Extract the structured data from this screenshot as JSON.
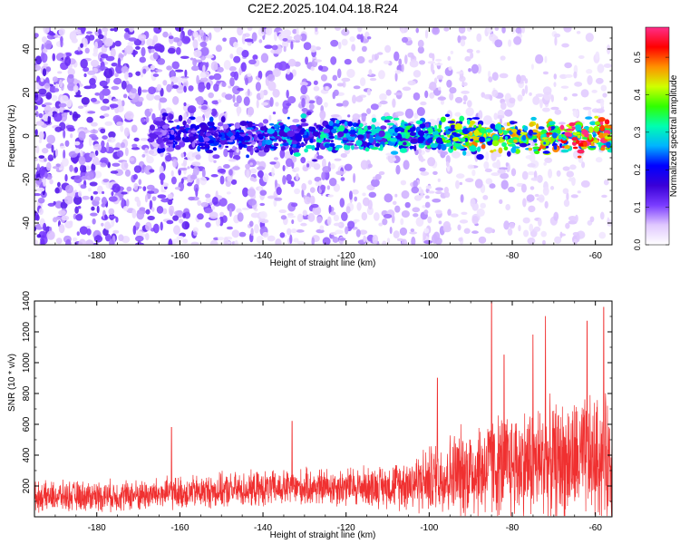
{
  "figure": {
    "title": "C2E2.2025.104.04.18.R24"
  },
  "chart_data": [
    {
      "type": "heatmap",
      "title": "C2E2.2025.104.04.18.R24",
      "xlabel": "Height of straight line (km)",
      "ylabel": "Frequency (Hz)",
      "xlim": [
        -195,
        -56
      ],
      "ylim": [
        -50,
        50
      ],
      "xticks": [
        -180,
        -160,
        -140,
        -120,
        -100,
        -80,
        -60
      ],
      "yticks": [
        -40,
        -20,
        0,
        20,
        40
      ],
      "colorbar": {
        "label": "Normalized spectral amplitude",
        "range": [
          0,
          0.58
        ],
        "ticks": [
          0,
          0.1,
          0.2,
          0.3,
          0.4,
          0.5
        ],
        "tick_labels": [
          "0.0",
          "0.1",
          "0.2",
          "0.3",
          "0.4",
          "0.5"
        ],
        "colormap": [
          "#ffffff",
          "#e0c8ff",
          "#7a3cff",
          "#3a00d8",
          "#0000ff",
          "#00b4ff",
          "#00ffb0",
          "#30ff00",
          "#d0ff00",
          "#ff9000",
          "#ff0000",
          "#ff2e8a"
        ]
      },
      "band": {
        "center_frequency": 0,
        "half_width": 6,
        "description_points": [
          {
            "x": -165,
            "y": 0,
            "value": 0.18
          },
          {
            "x": -140,
            "y": -2,
            "value": 0.22
          },
          {
            "x": -135,
            "y": 0,
            "value": 0.26
          },
          {
            "x": -100,
            "y": 1,
            "value": 0.3
          },
          {
            "x": -88,
            "y": 0,
            "value": 0.42
          },
          {
            "x": -78,
            "y": 1,
            "value": 0.4
          },
          {
            "x": -65,
            "y": 0,
            "value": 0.55
          }
        ]
      },
      "grid": false,
      "legend": "colorbar-right"
    },
    {
      "type": "line",
      "xlabel": "Height of straight line (km)",
      "ylabel": "SNR (10 * v/v)",
      "xlim": [
        -195,
        -56
      ],
      "ylim": [
        0,
        1400
      ],
      "xticks": [
        -180,
        -160,
        -140,
        -120,
        -100,
        -80,
        -60
      ],
      "yticks": [
        200,
        400,
        600,
        800,
        1000,
        1200,
        1400
      ],
      "color": "#f03030",
      "envelope": [
        {
          "x": -195,
          "mean": 130,
          "amplitude": 110
        },
        {
          "x": -170,
          "mean": 140,
          "amplitude": 120
        },
        {
          "x": -150,
          "mean": 170,
          "amplitude": 130
        },
        {
          "x": -130,
          "mean": 190,
          "amplitude": 140
        },
        {
          "x": -110,
          "mean": 200,
          "amplitude": 160
        },
        {
          "x": -100,
          "mean": 240,
          "amplitude": 260
        },
        {
          "x": -90,
          "mean": 300,
          "amplitude": 380
        },
        {
          "x": -80,
          "mean": 340,
          "amplitude": 420
        },
        {
          "x": -70,
          "mean": 360,
          "amplitude": 450
        },
        {
          "x": -56,
          "mean": 380,
          "amplitude": 480
        }
      ],
      "peaks": [
        {
          "x": -162,
          "y": 580
        },
        {
          "x": -133,
          "y": 620
        },
        {
          "x": -98,
          "y": 900
        },
        {
          "x": -85,
          "y": 1400
        },
        {
          "x": -82,
          "y": 1050
        },
        {
          "x": -75,
          "y": 1180
        },
        {
          "x": -72,
          "y": 1300
        },
        {
          "x": -62,
          "y": 1270
        },
        {
          "x": -58,
          "y": 1360
        }
      ],
      "grid": false
    }
  ]
}
